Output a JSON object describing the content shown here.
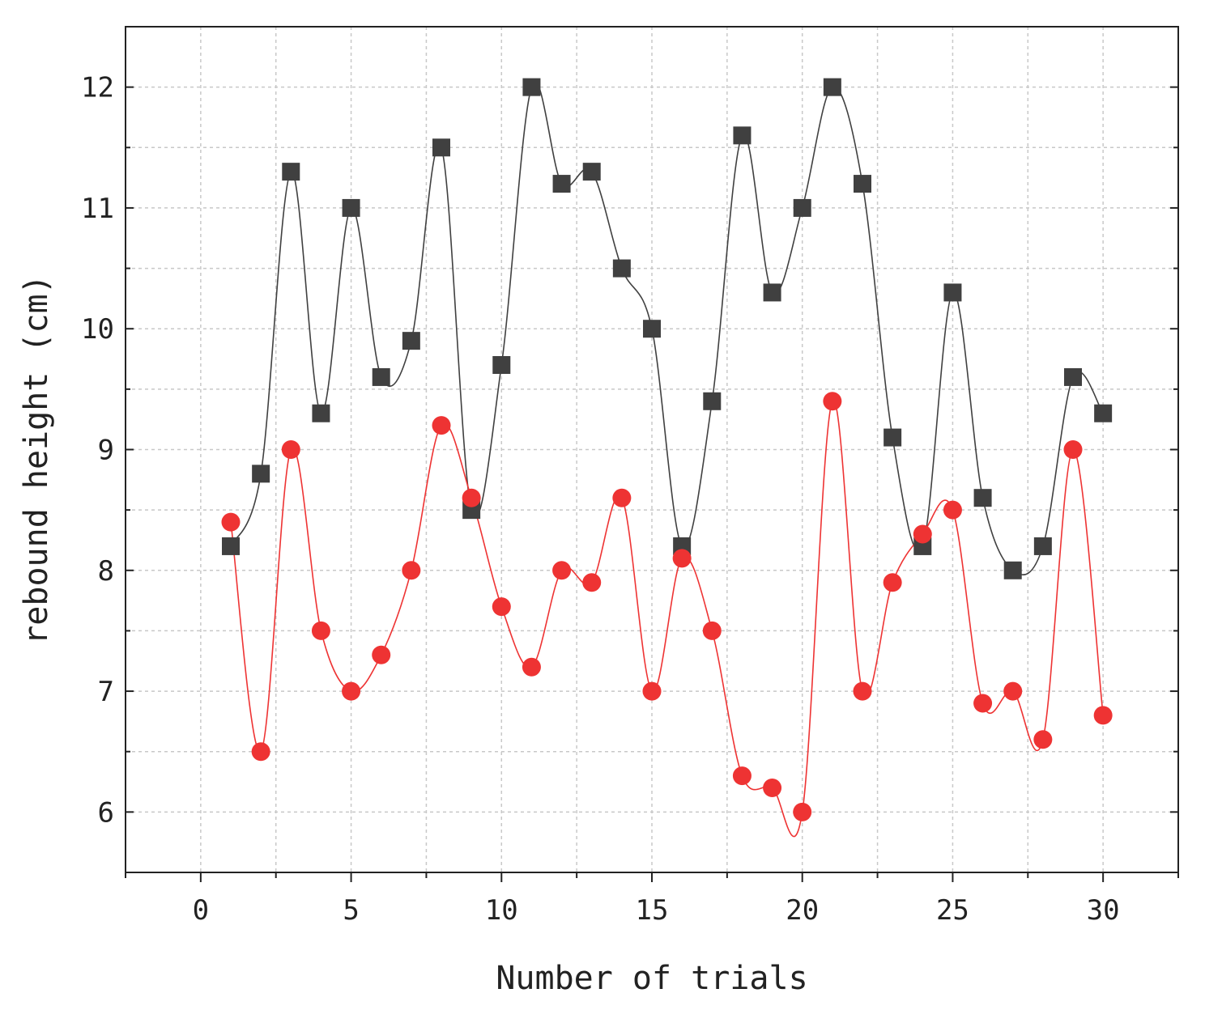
{
  "chart_data": {
    "type": "line",
    "title": "",
    "xlabel": "Number of trials",
    "ylabel": "rebound height (cm)",
    "xlim": [
      -2.5,
      32.5
    ],
    "ylim": [
      5.5,
      12.5
    ],
    "xticks": [
      0,
      5,
      10,
      15,
      20,
      25,
      30
    ],
    "yticks": [
      6,
      7,
      8,
      9,
      10,
      11,
      12
    ],
    "grid": true,
    "series": [
      {
        "name": "series-black-squares",
        "color": "#404040",
        "marker": "square",
        "x": [
          1,
          2,
          3,
          4,
          5,
          6,
          7,
          8,
          9,
          10,
          11,
          12,
          13,
          14,
          15,
          16,
          17,
          18,
          19,
          20,
          21,
          22,
          23,
          24,
          25,
          26,
          27,
          28,
          29,
          30
        ],
        "values": [
          8.2,
          8.8,
          11.3,
          9.3,
          11.0,
          9.6,
          9.9,
          11.5,
          8.5,
          9.7,
          12.0,
          11.2,
          11.3,
          10.5,
          10.0,
          8.2,
          9.4,
          11.6,
          10.3,
          11.0,
          12.0,
          11.2,
          9.1,
          8.2,
          10.3,
          8.6,
          8.0,
          8.2,
          9.6,
          9.3
        ]
      },
      {
        "name": "series-red-circles",
        "color": "#ee3333",
        "marker": "circle",
        "x": [
          1,
          2,
          3,
          4,
          5,
          6,
          7,
          8,
          9,
          10,
          11,
          12,
          13,
          14,
          15,
          16,
          17,
          18,
          19,
          20,
          21,
          22,
          23,
          24,
          25,
          26,
          27,
          28,
          29,
          30
        ],
        "values": [
          8.4,
          6.5,
          9.0,
          7.5,
          7.0,
          7.3,
          8.0,
          9.2,
          8.6,
          7.7,
          7.2,
          8.0,
          7.9,
          8.6,
          7.0,
          8.1,
          7.5,
          6.3,
          6.2,
          6.0,
          9.4,
          7.0,
          7.9,
          8.3,
          8.5,
          6.9,
          7.0,
          6.6,
          9.0,
          6.8
        ]
      }
    ]
  }
}
